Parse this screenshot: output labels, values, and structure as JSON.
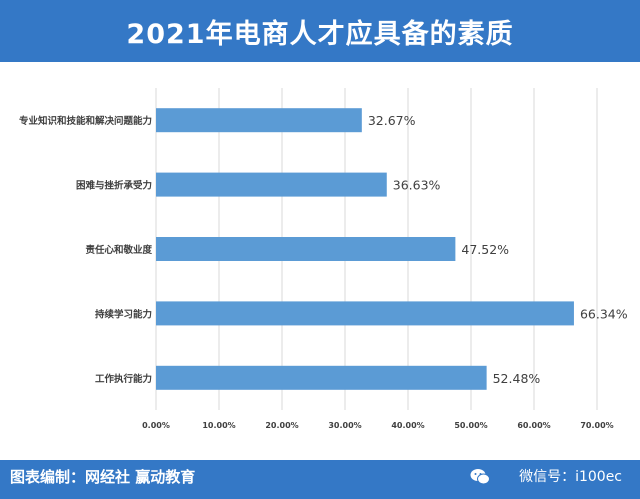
{
  "header": {
    "title": "2021年电商人才应具备的素质"
  },
  "footer": {
    "credit": "图表编制：网经社 赢动教育",
    "wechat": "微信号：i100ec"
  },
  "colors": {
    "header_bg": "#3478c6",
    "bar": "#5b9bd5",
    "grid": "#d9d9d9",
    "text": "#404040"
  },
  "chart_data": {
    "type": "bar",
    "orientation": "horizontal",
    "title": "",
    "xlabel": "",
    "ylabel": "",
    "categories": [
      "专业知识和技能和解决问题能力",
      "困难与挫折承受力",
      "责任心和敬业度",
      "持续学习能力",
      "工作执行能力"
    ],
    "values": [
      32.67,
      36.63,
      47.52,
      66.34,
      52.48
    ],
    "value_labels": [
      "32.67%",
      "36.63%",
      "47.52%",
      "66.34%",
      "52.48%"
    ],
    "xlim": [
      0,
      70
    ],
    "xticks": [
      "0.00%",
      "10.00%",
      "20.00%",
      "30.00%",
      "40.00%",
      "50.00%",
      "60.00%",
      "70.00%"
    ],
    "grid": "vertical",
    "legend": "none"
  }
}
